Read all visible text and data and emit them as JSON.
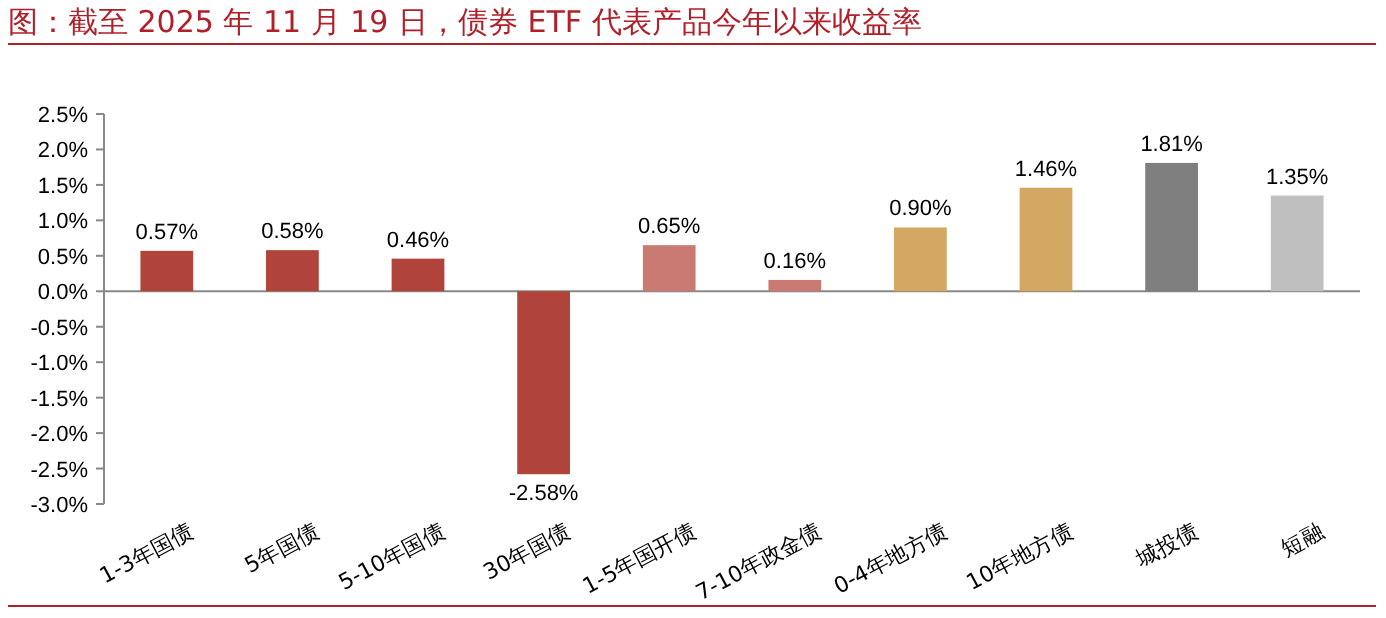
{
  "chart_data": {
    "type": "bar",
    "title": "图：截至 2025 年 11 月 19 日，债券 ETF 代表产品今年以来收益率",
    "categories": [
      "1-3年国债",
      "5年国债",
      "5-10年国债",
      "30年国债",
      "1-5年国开债",
      "7-10年政金债",
      "0-4年地方债",
      "10年地方债",
      "城投债",
      "短融"
    ],
    "values": [
      0.57,
      0.58,
      0.46,
      -2.58,
      0.65,
      0.16,
      0.9,
      1.46,
      1.81,
      1.35
    ],
    "colors": [
      "#b0443a",
      "#b0443a",
      "#b0443a",
      "#b0443a",
      "#c97b73",
      "#c97b73",
      "#d2a862",
      "#d2a862",
      "#7f7f7f",
      "#bfbfbf"
    ],
    "value_labels": [
      "0.57%",
      "0.58%",
      "0.46%",
      "-2.58%",
      "0.65%",
      "0.16%",
      "0.90%",
      "1.46%",
      "1.81%",
      "1.35%"
    ],
    "ylim": [
      -3.0,
      2.5
    ],
    "yticks": [
      {
        "value": -3.0,
        "label": "-3.0%"
      },
      {
        "value": -2.5,
        "label": "-2.5%"
      },
      {
        "value": -2.0,
        "label": "-2.0%"
      },
      {
        "value": -1.5,
        "label": "-1.5%"
      },
      {
        "value": -1.0,
        "label": "-1.0%"
      },
      {
        "value": -0.5,
        "label": "-0.5%"
      },
      {
        "value": 0,
        "label": "0.0%"
      },
      {
        "value": 0.5,
        "label": "0.5%"
      },
      {
        "value": 1.0,
        "label": "1.0%"
      },
      {
        "value": 1.5,
        "label": "1.5%"
      },
      {
        "value": 2.0,
        "label": "2.0%"
      },
      {
        "value": 2.5,
        "label": "2.5%"
      }
    ]
  }
}
